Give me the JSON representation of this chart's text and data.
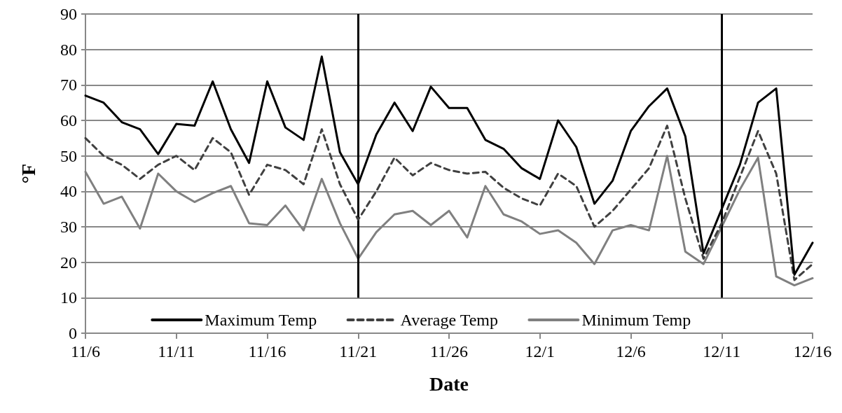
{
  "chart_data": {
    "type": "line",
    "xlabel": "Date",
    "ylabel": "°F",
    "x": [
      "--11-06",
      "--11-07",
      "--11-08",
      "--11-09",
      "--11-10",
      "--11-11",
      "--11-12",
      "--11-13",
      "--11-14",
      "--11-15",
      "--11-16",
      "--11-17",
      "--11-18",
      "--11-19",
      "--11-20",
      "--11-21",
      "--11-22",
      "--11-23",
      "--11-24",
      "--11-25",
      "--11-26",
      "--11-27",
      "--11-28",
      "--11-29",
      "--11-30",
      "--12-01",
      "--12-02",
      "--12-03",
      "--12-04",
      "--12-05",
      "--12-06",
      "--12-07",
      "--12-08",
      "--12-09",
      "--12-10",
      "--12-11",
      "--12-12",
      "--12-13",
      "--12-14",
      "--12-15",
      "--12-16"
    ],
    "series": [
      {
        "name": "Maximum Temp",
        "color": "#000000",
        "line_style": "solid",
        "values": [
          67,
          65,
          59.5,
          57.5,
          50.5,
          59,
          58.5,
          71,
          57.5,
          48,
          71,
          58,
          54.5,
          78,
          51,
          42,
          56,
          65,
          57,
          69.5,
          63.5,
          63.5,
          54.5,
          52,
          46.5,
          43.5,
          60,
          52.5,
          36.5,
          43,
          57,
          64,
          69,
          55.5,
          22.5,
          35,
          47.5,
          65,
          69,
          16.5,
          25.5
        ]
      },
      {
        "name": "Average Temp",
        "color": "#404040",
        "line_style": "dashed",
        "values": [
          55,
          50,
          47.5,
          43.5,
          47.5,
          50,
          46,
          55,
          51,
          39,
          47.5,
          46,
          42,
          57.5,
          42,
          32,
          40,
          49.5,
          44.5,
          48,
          46,
          45,
          45.5,
          41,
          38,
          36,
          45,
          41.5,
          30,
          34.5,
          40.5,
          46.5,
          58.5,
          38,
          21,
          31,
          44,
          57,
          45,
          15,
          19.5
        ]
      },
      {
        "name": "Minimum Temp",
        "color": "#808080",
        "line_style": "solid",
        "values": [
          45.5,
          36.5,
          38.5,
          29.5,
          45,
          40,
          37,
          39.5,
          41.5,
          31,
          30.5,
          36,
          29,
          43.5,
          31,
          21,
          28.5,
          33.5,
          34.5,
          30.5,
          34.5,
          27,
          41.5,
          33.5,
          31.5,
          28,
          29,
          25.5,
          19.5,
          29,
          30.5,
          29,
          50,
          23,
          19.5,
          30,
          40.5,
          49.5,
          16,
          13.5,
          15.5
        ]
      }
    ],
    "xlim": [
      "--11-06",
      "--12-16"
    ],
    "xticks": [
      {
        "value": "--11-06",
        "label": "11/6"
      },
      {
        "value": "--11-11",
        "label": "11/11"
      },
      {
        "value": "--11-16",
        "label": "11/16"
      },
      {
        "value": "--11-21",
        "label": "11/21"
      },
      {
        "value": "--11-26",
        "label": "11/26"
      },
      {
        "value": "--12-01",
        "label": "12/1"
      },
      {
        "value": "--12-06",
        "label": "12/6"
      },
      {
        "value": "--12-11",
        "label": "12/11"
      },
      {
        "value": "--12-16",
        "label": "12/16"
      }
    ],
    "ylim": [
      0,
      90
    ],
    "yticks": [
      0,
      10,
      20,
      30,
      40,
      50,
      60,
      70,
      80,
      90
    ],
    "ref_lines": [
      {
        "axis": "x",
        "value": "--11-21",
        "color": "#000000"
      },
      {
        "axis": "x",
        "value": "--12-11",
        "color": "#000000"
      }
    ],
    "grid": "y",
    "legend": "bottom",
    "marker": "none"
  }
}
